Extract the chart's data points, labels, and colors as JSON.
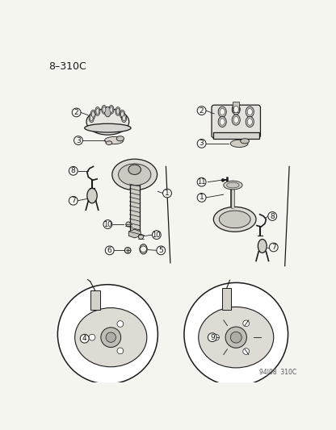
{
  "title": "8–310C",
  "background_color": "#f5f5f0",
  "line_color": "#1a1a1a",
  "label_color": "#1a1a1a",
  "watermark": "94J08  310C",
  "fig_width": 4.16,
  "fig_height": 5.33,
  "dpi": 100
}
